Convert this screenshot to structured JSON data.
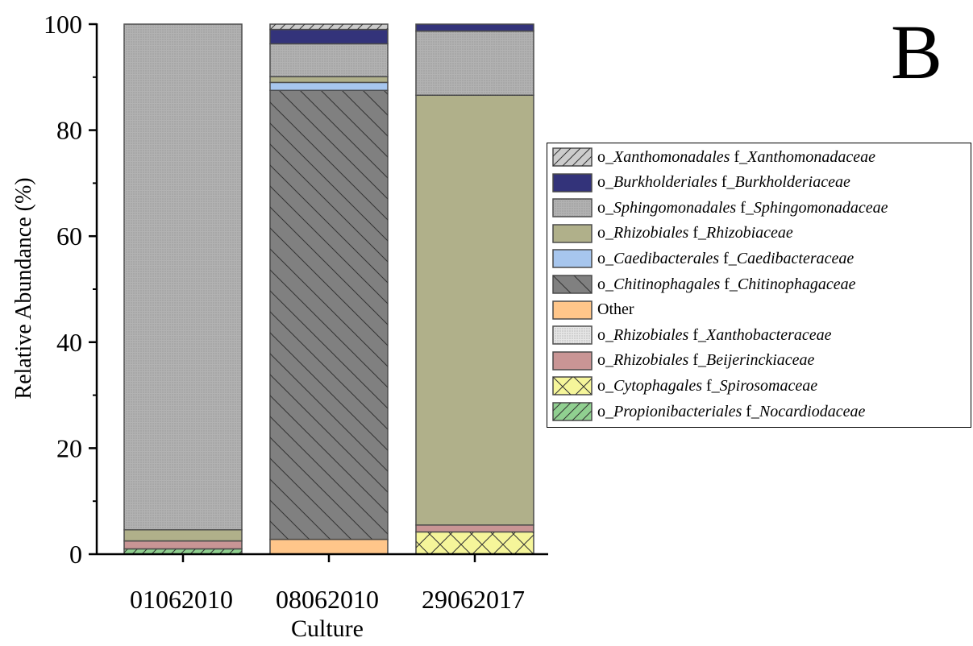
{
  "panel_label": "B",
  "chart_data": {
    "type": "bar",
    "stacked": true,
    "xlabel": "Culture",
    "ylabel": "Relative Abundance (%)",
    "ylim": [
      0,
      100
    ],
    "yticks": [
      0,
      20,
      40,
      60,
      80,
      100
    ],
    "categories": [
      "01062010",
      "08062010",
      "29062017"
    ],
    "legend_placement": "right",
    "series": [
      {
        "name": "o_Propionibacteriales f_Nocardiodaceae",
        "order": "o_",
        "order_name": "Propionibacteriales",
        "family": "f_",
        "family_name": "Nocardiodaceae",
        "color": "#90d090",
        "pattern": "hatch-right",
        "values": [
          1.0,
          0,
          0
        ]
      },
      {
        "name": "o_Cytophagales f_Spirosomaceae",
        "order": "o_",
        "order_name": "Cytophagales",
        "family": "f_",
        "family_name": "Spirosomaceae",
        "color": "#f5f59a",
        "pattern": "cross",
        "values": [
          0,
          0,
          4.2
        ]
      },
      {
        "name": "o_Rhizobiales f_Beijerinckiaceae",
        "order": "o_",
        "order_name": "Rhizobiales",
        "family": "f_",
        "family_name": "Beijerinckiaceae",
        "color": "#c99595",
        "pattern": "solid",
        "values": [
          1.5,
          0,
          1.3
        ]
      },
      {
        "name": "o_Rhizobiales f_Xanthobacteraceae",
        "order": "o_",
        "order_name": "Rhizobiales",
        "family": "f_",
        "family_name": "Xanthobacteraceae",
        "color": "#e6e6e6",
        "pattern": "dots",
        "values": [
          0,
          0,
          0
        ]
      },
      {
        "name": "Other",
        "order": "",
        "order_name": "",
        "family": "",
        "family_name": "",
        "plain": "Other",
        "color": "#ffc68a",
        "pattern": "solid",
        "values": [
          0,
          2.8,
          0
        ]
      },
      {
        "name": "o_Chitinophagales f_Chitinophagaceae",
        "order": "o_",
        "order_name": "Chitinophagales",
        "family": "f_",
        "family_name": "Chitinophagaceae",
        "color": "#808080",
        "pattern": "hatch-left",
        "values": [
          0,
          84.7,
          0
        ]
      },
      {
        "name": "o_Caedibacterales f_Caedibacteraceae",
        "order": "o_",
        "order_name": "Caedibacterales",
        "family": "f_",
        "family_name": "Caedibacteraceae",
        "color": "#a7c6ee",
        "pattern": "solid",
        "values": [
          0,
          1.5,
          0
        ]
      },
      {
        "name": "o_Rhizobiales f_Rhizobiaceae",
        "order": "o_",
        "order_name": "Rhizobiales",
        "family": "f_",
        "family_name": "Rhizobiaceae",
        "color": "#b0b08a",
        "pattern": "solid",
        "values": [
          2.1,
          1.1,
          81.1
        ]
      },
      {
        "name": "o_Sphingomonadales f_Sphingomonadaceae",
        "order": "o_",
        "order_name": "Sphingomonadales",
        "family": "f_",
        "family_name": "Sphingomonadaceae",
        "color": "#b2b2b2",
        "pattern": "dots",
        "values": [
          95.4,
          6.2,
          12.1
        ]
      },
      {
        "name": "o_Burkholderiales f_Burkholderiaceae",
        "order": "o_",
        "order_name": "Burkholderiales",
        "family": "f_",
        "family_name": "Burkholderiaceae",
        "color": "#33337a",
        "pattern": "solid",
        "values": [
          0,
          2.7,
          1.3
        ]
      },
      {
        "name": "o_Xanthomonadales f_Xanthomonadaceae",
        "order": "o_",
        "order_name": "Xanthomonadales",
        "family": "f_",
        "family_name": "Xanthomonadaceae",
        "color": "#cccccc",
        "pattern": "hatch-right",
        "values": [
          0,
          1.0,
          0
        ]
      }
    ]
  }
}
